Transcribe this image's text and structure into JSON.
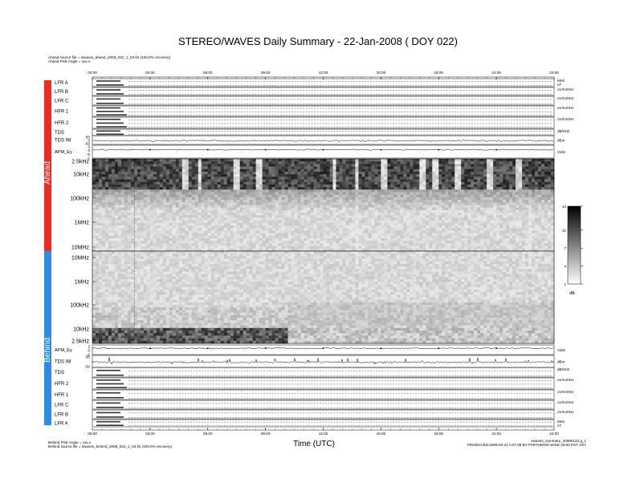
{
  "title": "STEREO/WAVES Daily Summary - 22-Jan-2008 ( DOY 022)",
  "header": {
    "ahead_source": "Ahead source file = swaves_ahead_2008_022_1_04.fin (100.0% recovery)",
    "ahead_pse": "Ahead PSE Angle = xxx.x"
  },
  "footer": {
    "behind_pse": "Behind PSE Angle = xxx.x",
    "behind_source": "Behind source file = swaves_behind_2008_022_1_04.fin (100.0% recovery)",
    "filename": "swaves_summary_20080122.g_1",
    "produced": "PRODUCED:2008-02-21 2:07:08 BY PARTHENIS WISE 20:50 PST 1/07"
  },
  "side_labels": {
    "ahead": "Ahead",
    "behind": "Behind"
  },
  "chart_data": {
    "type": "heatmap",
    "xlabel": "Time (UTC)",
    "x_ticks": [
      "00:00",
      "03:00",
      "06:00",
      "09:00",
      "12:00",
      "15:00",
      "18:00",
      "21:00",
      "24:00"
    ],
    "xlim_hours": [
      0,
      24
    ],
    "ahead_rows": [
      {
        "name": "LFR A",
        "right": "MHz\nnT"
      },
      {
        "name": "LFR B",
        "right": "uV/m/rtHz"
      },
      {
        "name": "LFR C",
        "right": "uV/m/rtHz"
      },
      {
        "name": "HFR 1",
        "right": "uV/m/rtHz"
      },
      {
        "name": "HFR 2",
        "right": "uV/m/rtHz"
      },
      {
        "name": "TDS",
        "right": "dB/rtHz"
      },
      {
        "name": "TDS IM",
        "right": "dBm"
      }
    ],
    "ahead_ey": {
      "name": "APM_Ey",
      "ticks": [
        "5",
        "0",
        "-5",
        "-1"
      ],
      "right": "Volts"
    },
    "ahead_freq_ticks": [
      "2.5kHz",
      "10kHz",
      "100kHz",
      "1MHz",
      "10MHz"
    ],
    "behind_freq_ticks": [
      "10MHz",
      "1MHz",
      "100kHz",
      "10kHz",
      "2.5kHz"
    ],
    "behind_ey": {
      "name": "APM_Ey",
      "ticks": [
        "2",
        "0",
        "-2"
      ],
      "right": "Volts"
    },
    "behind_rows": [
      {
        "name": "TDS IM",
        "ticks": [
          "50",
          "-50"
        ],
        "right": "dBm"
      },
      {
        "name": "TDS",
        "right": "dB/rtHz"
      },
      {
        "name": "HFR 2",
        "right": "uV/m/rtHz"
      },
      {
        "name": "HFR 1",
        "right": "uV/m/rtHz"
      },
      {
        "name": "LFR C",
        "right": "uV/m/rtHz"
      },
      {
        "name": "LFR B",
        "right": "uV/m/rtHz"
      },
      {
        "name": "LFR A",
        "right": "MHz\nnT"
      }
    ],
    "ahead_tdsim_ticks": [
      "50",
      "0",
      "-50"
    ],
    "colorbar": {
      "range": [
        1,
        14
      ],
      "ticks": [
        "14",
        "10",
        "7",
        "4",
        "1"
      ],
      "unit": "dB"
    },
    "colors": {
      "ahead": "#ee2a24",
      "behind": "#2b8de6"
    }
  }
}
